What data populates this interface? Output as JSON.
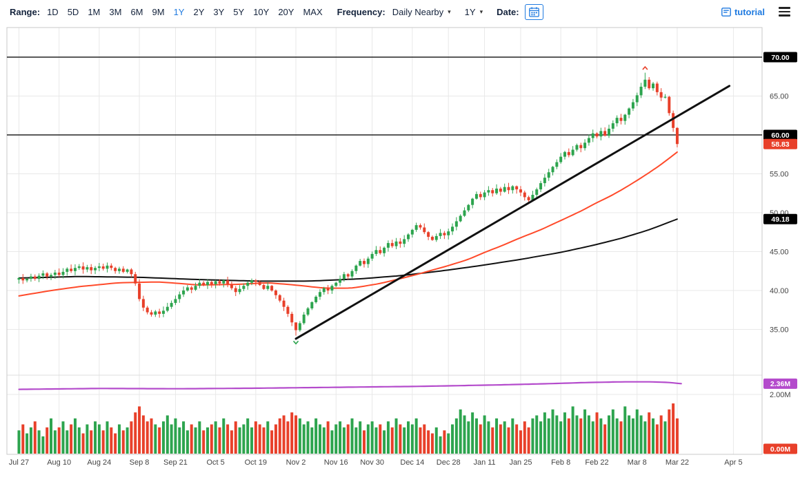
{
  "toolbar": {
    "range_label": "Range:",
    "range_options": [
      "1D",
      "5D",
      "1M",
      "3M",
      "6M",
      "9M",
      "1Y",
      "2Y",
      "3Y",
      "5Y",
      "10Y",
      "20Y",
      "MAX"
    ],
    "range_selected": "1Y",
    "frequency_label": "Frequency:",
    "frequency_value": "Daily Nearby",
    "period_value": "1Y",
    "date_label": "Date:",
    "tutorial_label": "tutorial",
    "colors": {
      "accent_blue": "#1f7ae0",
      "text_navy": "#14233c"
    }
  },
  "chart_data": {
    "type": "candlestick+volume",
    "open_first": 41.4,
    "x_ticks": [
      {
        "label": "Jul 27",
        "day": 0
      },
      {
        "label": "Aug 10",
        "day": 10
      },
      {
        "label": "Aug 24",
        "day": 20
      },
      {
        "label": "Sep 8",
        "day": 30
      },
      {
        "label": "Sep 21",
        "day": 39
      },
      {
        "label": "Oct 5",
        "day": 49
      },
      {
        "label": "Oct 19",
        "day": 59
      },
      {
        "label": "Nov 2",
        "day": 69
      },
      {
        "label": "Nov 16",
        "day": 79
      },
      {
        "label": "Nov 30",
        "day": 88
      },
      {
        "label": "Dec 14",
        "day": 98
      },
      {
        "label": "Dec 28",
        "day": 107
      },
      {
        "label": "Jan 11",
        "day": 116
      },
      {
        "label": "Jan 25",
        "day": 125
      },
      {
        "label": "Feb 8",
        "day": 135
      },
      {
        "label": "Feb 22",
        "day": 144
      },
      {
        "label": "Mar 8",
        "day": 154
      },
      {
        "label": "Mar 22",
        "day": 164
      },
      {
        "label": "Apr 5",
        "day": 178
      }
    ],
    "y_axis_labels": [
      {
        "text": "65.00",
        "value": 65
      },
      {
        "text": "55.00",
        "value": 55
      },
      {
        "text": "50.00",
        "value": 50
      },
      {
        "text": "45.00",
        "value": 45
      },
      {
        "text": "40.00",
        "value": 40
      },
      {
        "text": "35.00",
        "value": 35
      }
    ],
    "horizontal_lines": [
      70,
      60
    ],
    "gridline_values": [
      65,
      60,
      55,
      50,
      45,
      40,
      35
    ],
    "closes": [
      41.6,
      41.3,
      41.5,
      41.8,
      41.5,
      41.9,
      42.2,
      41.8,
      42.0,
      42.3,
      42.0,
      42.4,
      42.8,
      42.5,
      42.9,
      43.1,
      42.7,
      43.0,
      42.6,
      42.9,
      43.1,
      42.8,
      43.2,
      42.9,
      42.5,
      42.8,
      42.4,
      42.7,
      42.1,
      40.9,
      38.9,
      37.8,
      37.2,
      36.9,
      37.3,
      37.0,
      37.4,
      37.9,
      38.4,
      38.9,
      39.5,
      40.0,
      40.4,
      40.1,
      40.6,
      41.0,
      40.7,
      41.1,
      40.8,
      41.2,
      40.9,
      41.3,
      40.8,
      40.3,
      39.8,
      40.2,
      40.6,
      41.0,
      41.3,
      41.1,
      40.7,
      40.2,
      40.6,
      40.0,
      39.4,
      38.7,
      37.9,
      37.0,
      35.9,
      34.9,
      35.8,
      36.9,
      37.7,
      38.5,
      39.2,
      39.8,
      40.3,
      40.0,
      40.6,
      41.0,
      41.5,
      42.1,
      41.8,
      42.5,
      43.2,
      43.8,
      43.4,
      44.1,
      44.7,
      45.2,
      44.8,
      45.5,
      46.1,
      45.7,
      46.3,
      46.0,
      46.6,
      47.2,
      47.8,
      48.4,
      48.1,
      47.5,
      46.9,
      46.5,
      47.0,
      47.4,
      47.1,
      47.6,
      48.2,
      48.9,
      49.6,
      50.3,
      51.0,
      51.8,
      52.4,
      52.0,
      52.6,
      52.9,
      52.5,
      53.1,
      52.7,
      53.3,
      52.9,
      53.4,
      53.0,
      52.6,
      52.0,
      51.6,
      52.3,
      53.0,
      53.8,
      54.5,
      55.2,
      55.9,
      56.5,
      57.2,
      57.8,
      57.4,
      58.1,
      58.7,
      58.3,
      59.0,
      59.6,
      60.2,
      59.8,
      60.5,
      59.9,
      60.8,
      61.5,
      62.2,
      61.8,
      62.6,
      63.4,
      64.2,
      65.1,
      66.2,
      67.1,
      66.0,
      66.6,
      65.5,
      64.8,
      64.9,
      62.8,
      60.9,
      58.83
    ],
    "volumes": [
      0.8,
      1.0,
      0.7,
      0.9,
      1.1,
      0.8,
      0.6,
      0.9,
      1.2,
      0.8,
      0.9,
      1.1,
      0.8,
      1.0,
      1.2,
      0.9,
      0.7,
      1.0,
      0.8,
      1.1,
      1.0,
      0.8,
      1.1,
      0.9,
      0.7,
      1.0,
      0.8,
      0.9,
      1.1,
      1.4,
      1.6,
      1.3,
      1.1,
      1.2,
      1.0,
      0.9,
      1.1,
      1.3,
      1.0,
      1.2,
      0.9,
      1.1,
      0.8,
      1.0,
      0.9,
      1.1,
      0.8,
      0.9,
      1.0,
      1.1,
      0.9,
      1.2,
      1.0,
      0.8,
      1.1,
      0.9,
      1.0,
      1.2,
      0.9,
      1.1,
      1.0,
      0.9,
      1.1,
      0.8,
      1.0,
      1.2,
      1.3,
      1.1,
      1.4,
      1.3,
      1.2,
      1.0,
      1.1,
      0.9,
      1.2,
      1.0,
      0.9,
      1.1,
      0.8,
      1.0,
      1.1,
      0.9,
      1.0,
      1.2,
      0.9,
      1.1,
      0.8,
      1.0,
      1.1,
      0.9,
      1.0,
      0.8,
      1.1,
      0.9,
      1.2,
      1.0,
      0.9,
      1.1,
      1.0,
      1.2,
      0.9,
      1.0,
      0.8,
      0.7,
      0.9,
      0.6,
      0.8,
      0.7,
      1.0,
      1.2,
      1.5,
      1.3,
      1.1,
      1.4,
      1.2,
      1.0,
      1.3,
      1.1,
      0.9,
      1.2,
      1.0,
      1.1,
      0.9,
      1.2,
      1.0,
      0.8,
      1.1,
      0.9,
      1.2,
      1.3,
      1.1,
      1.4,
      1.2,
      1.5,
      1.3,
      1.1,
      1.4,
      1.2,
      1.6,
      1.3,
      1.2,
      1.5,
      1.3,
      1.1,
      1.4,
      1.2,
      1.0,
      1.3,
      1.5,
      1.2,
      1.1,
      1.6,
      1.3,
      1.2,
      1.5,
      1.3,
      1.1,
      1.4,
      1.2,
      1.0,
      1.3,
      1.1,
      1.5,
      1.7,
      1.2
    ],
    "wick_overrides": {
      "29": [
        42.4,
        40.6
      ],
      "69": [
        35.6,
        34.2
      ],
      "156": [
        68.0,
        65.9
      ],
      "164": [
        61.0,
        58.4
      ]
    },
    "red_ma_points": [
      [
        0,
        39.3
      ],
      [
        8,
        40.0
      ],
      [
        15,
        40.5
      ],
      [
        25,
        41.0
      ],
      [
        35,
        41.1
      ],
      [
        45,
        40.7
      ],
      [
        55,
        40.8
      ],
      [
        62,
        41.0
      ],
      [
        69,
        40.7
      ],
      [
        76,
        40.3
      ],
      [
        83,
        40.3
      ],
      [
        90,
        40.9
      ],
      [
        98,
        41.9
      ],
      [
        107,
        43.2
      ],
      [
        112,
        44.0
      ],
      [
        116,
        44.9
      ],
      [
        121,
        45.9
      ],
      [
        125,
        46.8
      ],
      [
        130,
        47.8
      ],
      [
        135,
        49.0
      ],
      [
        140,
        50.2
      ],
      [
        144,
        51.3
      ],
      [
        148,
        52.3
      ],
      [
        152,
        53.5
      ],
      [
        156,
        54.8
      ],
      [
        160,
        56.2
      ],
      [
        164,
        57.8
      ]
    ],
    "black_ma_points": [
      [
        0,
        41.6
      ],
      [
        15,
        41.8
      ],
      [
        30,
        41.7
      ],
      [
        45,
        41.4
      ],
      [
        60,
        41.2
      ],
      [
        72,
        41.2
      ],
      [
        85,
        41.5
      ],
      [
        95,
        41.9
      ],
      [
        105,
        42.5
      ],
      [
        115,
        43.2
      ],
      [
        125,
        44.0
      ],
      [
        135,
        44.9
      ],
      [
        143,
        45.8
      ],
      [
        150,
        46.7
      ],
      [
        157,
        47.8
      ],
      [
        164,
        49.18
      ]
    ],
    "purple_line_points": [
      [
        0,
        2.17
      ],
      [
        20,
        2.2
      ],
      [
        40,
        2.19
      ],
      [
        60,
        2.21
      ],
      [
        80,
        2.24
      ],
      [
        100,
        2.27
      ],
      [
        120,
        2.32
      ],
      [
        132,
        2.36
      ],
      [
        142,
        2.4
      ],
      [
        150,
        2.42
      ],
      [
        158,
        2.42
      ],
      [
        162,
        2.4
      ],
      [
        165,
        2.36
      ]
    ],
    "trendline": {
      "start": [
        69,
        33.8
      ],
      "end": [
        177,
        66.3
      ]
    },
    "markers": [
      {
        "day": 156,
        "price": 68.4,
        "dir": "up",
        "color": "#e8402a"
      },
      {
        "day": 69,
        "price": 33.5,
        "dir": "down",
        "color": "#2da44e"
      }
    ],
    "price_badges": [
      {
        "text": "70.00",
        "bg": "#000000",
        "value": 70
      },
      {
        "text": "60.00",
        "bg": "#000000",
        "value": 60
      },
      {
        "text": "58.83",
        "bg": "#e8402a",
        "value": 58.83
      },
      {
        "text": "49.18",
        "bg": "#000000",
        "value": 49.18
      }
    ],
    "volume_badges": [
      {
        "text": "2.36M",
        "bg": "#b44bcc",
        "value": 2.36
      },
      {
        "text": "0.00M",
        "bg": "#e8402a",
        "value": 0.0
      }
    ],
    "volume_axis": {
      "label": "2.00M",
      "value": 2.0
    },
    "colors": {
      "up": "#2da44e",
      "down": "#e8402a",
      "red_ma": "#ff4a2a",
      "black_ma": "#111111",
      "purple": "#b44bcc",
      "trend": "#111111",
      "grid": "#e8e8e8",
      "border": "#c9c9c9",
      "axis_text": "#444444"
    }
  }
}
